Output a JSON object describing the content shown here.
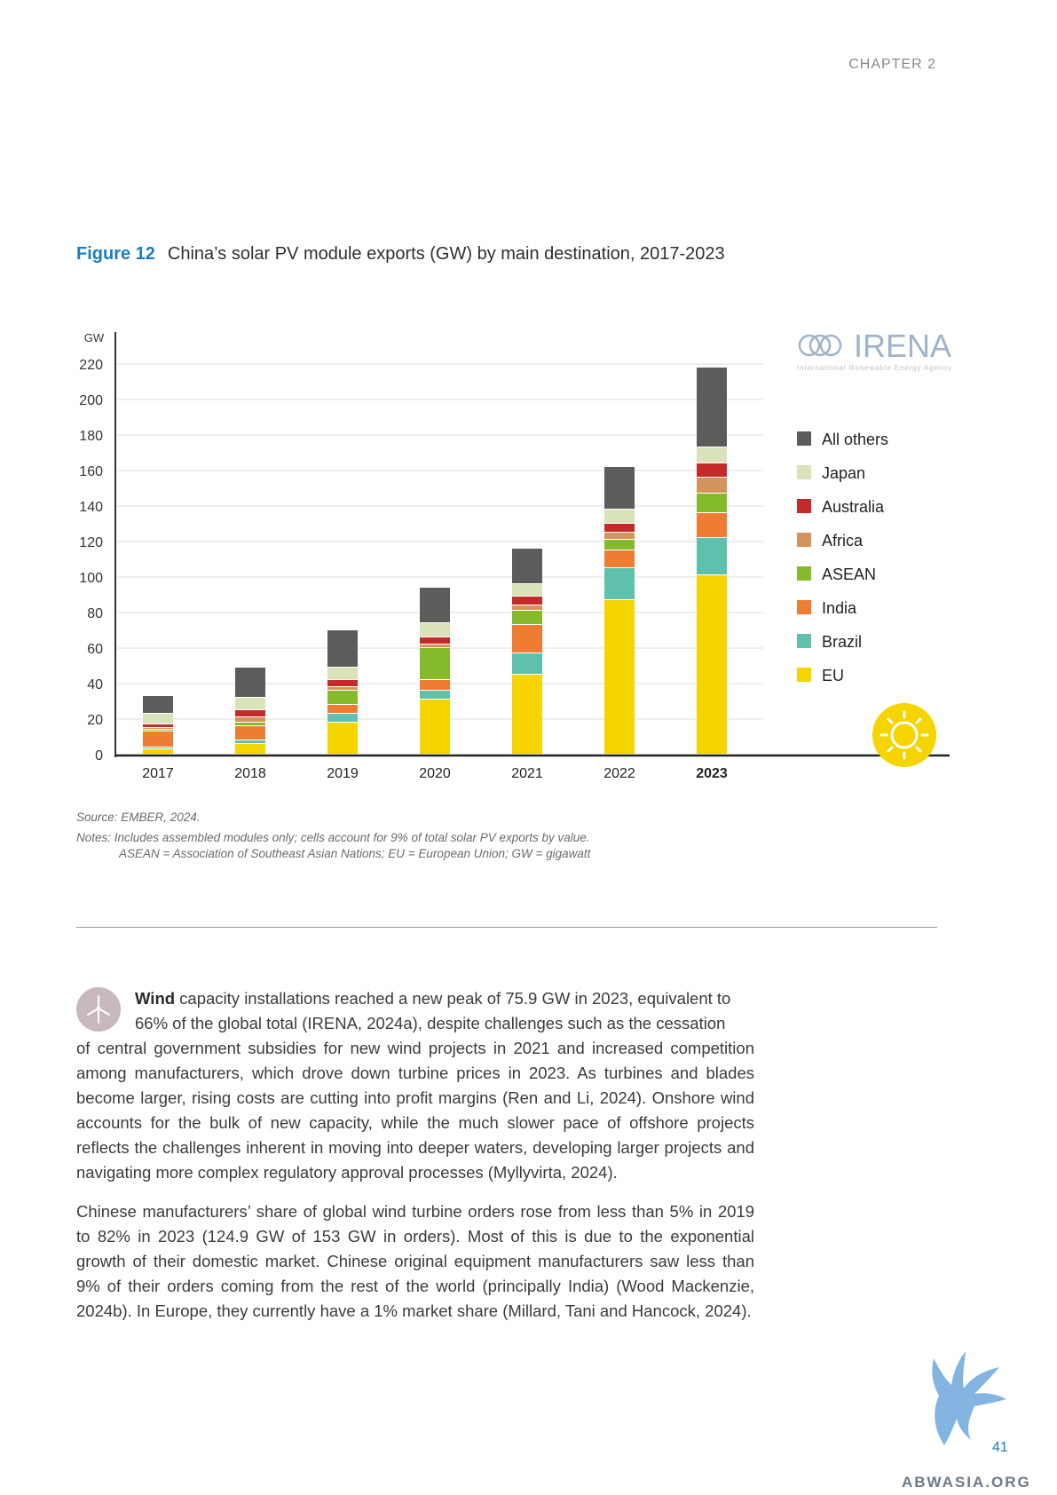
{
  "header": {
    "chapter": "CHAPTER 2"
  },
  "figure": {
    "number": "Figure 12",
    "title": "China’s solar PV module exports (GW) by main destination, 2017-2023"
  },
  "logo": {
    "name": "IRENA",
    "tagline": "International Renewable Energy Agency"
  },
  "chart_data": {
    "type": "bar",
    "stacked": true,
    "unit_label": "GW",
    "ylim": [
      0,
      220
    ],
    "yticks": [
      0,
      20,
      40,
      60,
      80,
      100,
      120,
      140,
      160,
      180,
      200,
      220
    ],
    "grid": true,
    "legend_position": "right",
    "categories": [
      "2017",
      "2018",
      "2019",
      "2020",
      "2021",
      "2022",
      "2023"
    ],
    "highlight_category": "2023",
    "series": [
      {
        "name": "EU",
        "color": "#f5d400",
        "values": [
          3,
          6,
          18,
          31,
          45,
          87,
          101
        ]
      },
      {
        "name": "Brazil",
        "color": "#5fc0ad",
        "values": [
          1,
          2,
          5,
          5,
          12,
          18,
          21
        ]
      },
      {
        "name": "India",
        "color": "#ee7d33",
        "values": [
          9,
          8,
          5,
          6,
          16,
          10,
          14
        ]
      },
      {
        "name": "ASEAN",
        "color": "#85ba2a",
        "values": [
          1,
          2,
          8,
          18,
          8,
          6,
          11
        ]
      },
      {
        "name": "Africa",
        "color": "#d4935a",
        "values": [
          1,
          3,
          2,
          2,
          3,
          4,
          9
        ]
      },
      {
        "name": "Australia",
        "color": "#c52a2a",
        "values": [
          2,
          4,
          4,
          4,
          5,
          5,
          8
        ]
      },
      {
        "name": "Japan",
        "color": "#d8e3ba",
        "values": [
          6,
          7,
          7,
          8,
          7,
          8,
          9
        ]
      },
      {
        "name": "All others",
        "color": "#5c5c5c",
        "values": [
          10,
          17,
          21,
          20,
          20,
          24,
          45
        ]
      }
    ]
  },
  "source": "Source: EMBER, 2024.",
  "notes_line1": "Notes: Includes assembled modules only; cells account for 9% of total solar PV exports by value.",
  "notes_line2": "ASEAN = Association of Southeast Asian Nations; EU = European Union; GW = gigawatt",
  "paragraph1": {
    "lead": "Wind",
    "line1": " capacity installations reached a new peak of 75.9 GW in 2023, equivalent to",
    "line2": "66% of the global total (IRENA, 2024a), despite challenges such as the cessation",
    "rest": "of central government subsidies for new wind projects in 2021 and increased competition among manufacturers, which drove down turbine prices in 2023. As turbines and blades become larger, rising costs are cutting into profit margins (Ren and Li, 2024). Onshore wind accounts for the bulk of new capacity, while the much slower pace of offshore projects reflects the challenges inherent in moving into deeper waters, developing larger projects and navigating more complex regulatory approval processes (Myllyvirta, 2024)."
  },
  "paragraph2": "Chinese manufacturers’ share of global wind turbine orders rose from less than 5% in 2019 to 82% in 2023 (124.9 GW of 153 GW in orders). Most of this is due to the exponential growth of their domestic market. Chinese original equipment manufacturers saw less than 9% of their orders coming from the rest of the world (principally India) (Wood Mackenzie, 2024b). In Europe, they currently have a 1% market share (Millard, Tani and Hancock, 2024).",
  "page_number": "41",
  "watermark": "ABWASIA.ORG"
}
